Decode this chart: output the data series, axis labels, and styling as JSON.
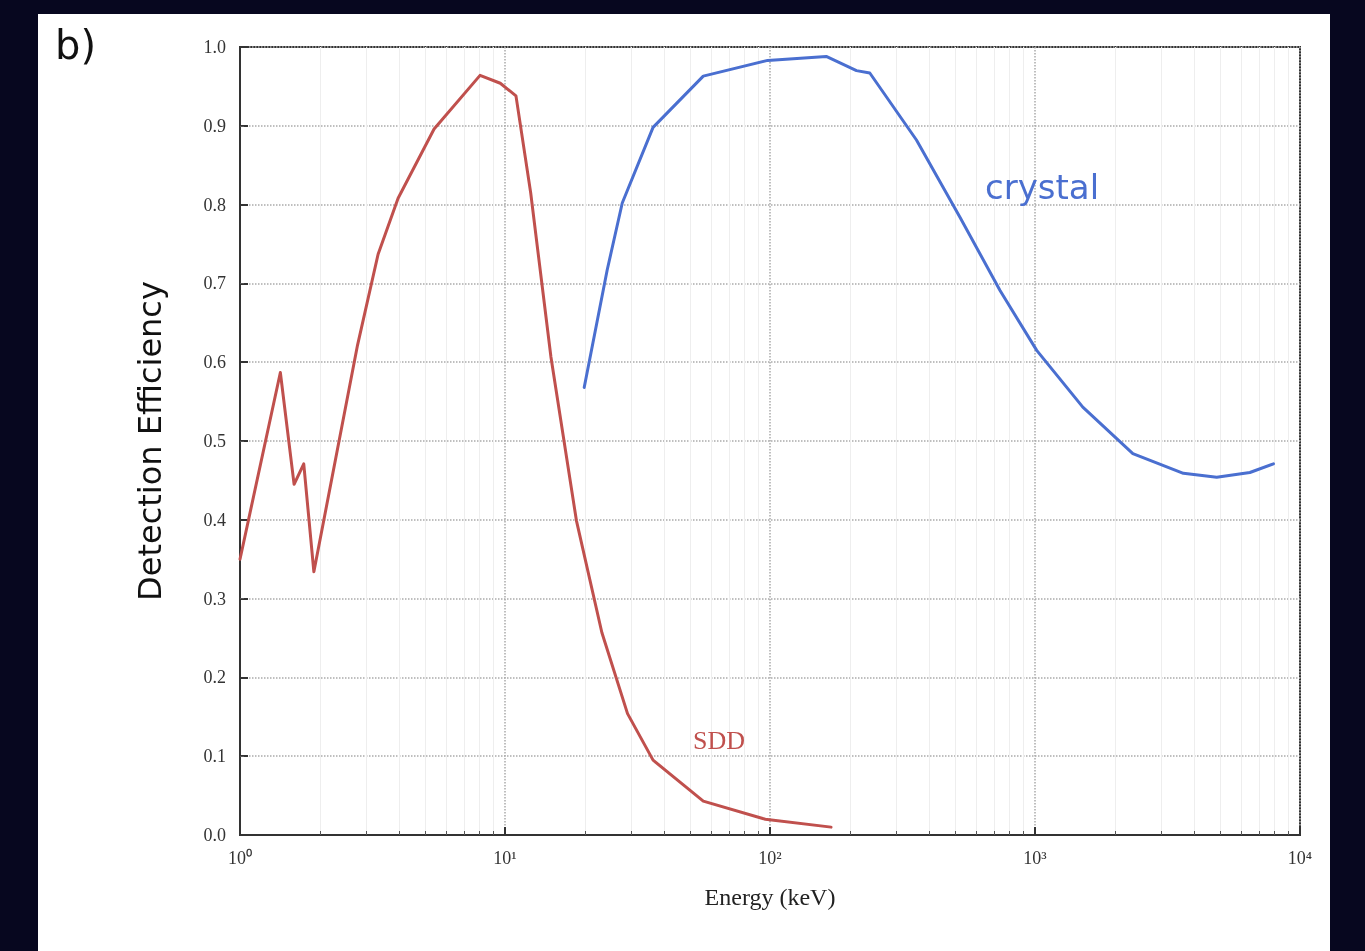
{
  "chart_data": {
    "type": "line",
    "title": "b)",
    "xlabel": "Energy (keV)",
    "ylabel": "Detection Efficiency",
    "log": "x",
    "grid": true,
    "marker": "none",
    "line_style": "solid",
    "xlim": [
      1,
      10000
    ],
    "xticks": [
      {
        "value": 1,
        "label": "10⁰"
      },
      {
        "value": 10,
        "label": "10¹"
      },
      {
        "value": 100,
        "label": "10²"
      },
      {
        "value": 1000,
        "label": "10³"
      },
      {
        "value": 10000,
        "label": "10⁴"
      }
    ],
    "ylim": [
      0,
      1
    ],
    "yticks": [
      {
        "value": 0,
        "label": "0.0"
      },
      0.1,
      0.2,
      0.3,
      0.4,
      0.5,
      0.6,
      0.7,
      0.8,
      0.9,
      {
        "value": 1,
        "label": "1.0"
      }
    ],
    "series": [
      {
        "name": "SDD",
        "color": "#c0504d",
        "x": [
          1,
          1.42,
          1.6,
          1.74,
          1.9,
          2.77,
          3.32,
          3.95,
          5.4,
          8.05,
          9.6,
          11,
          12.5,
          14.9,
          18.6,
          23.2,
          29,
          36.2,
          56,
          96,
          170
        ],
        "values": [
          0.35,
          0.587,
          0.445,
          0.471,
          0.334,
          0.62,
          0.737,
          0.808,
          0.896,
          0.964,
          0.954,
          0.938,
          0.815,
          0.607,
          0.399,
          0.257,
          0.154,
          0.095,
          0.043,
          0.02,
          0.01
        ]
      },
      {
        "name": "crystal",
        "color": "#4a6fd0",
        "x": [
          19.9,
          24.3,
          27.7,
          36.2,
          56,
          98,
          163,
          212,
          238,
          357,
          521,
          738,
          1015,
          1515,
          2340,
          3630,
          4850,
          6470,
          7940
        ],
        "values": [
          0.568,
          0.717,
          0.802,
          0.898,
          0.963,
          0.983,
          0.988,
          0.97,
          0.967,
          0.882,
          0.784,
          0.691,
          0.615,
          0.543,
          0.484,
          0.459,
          0.454,
          0.46,
          0.471
        ]
      }
    ]
  }
}
